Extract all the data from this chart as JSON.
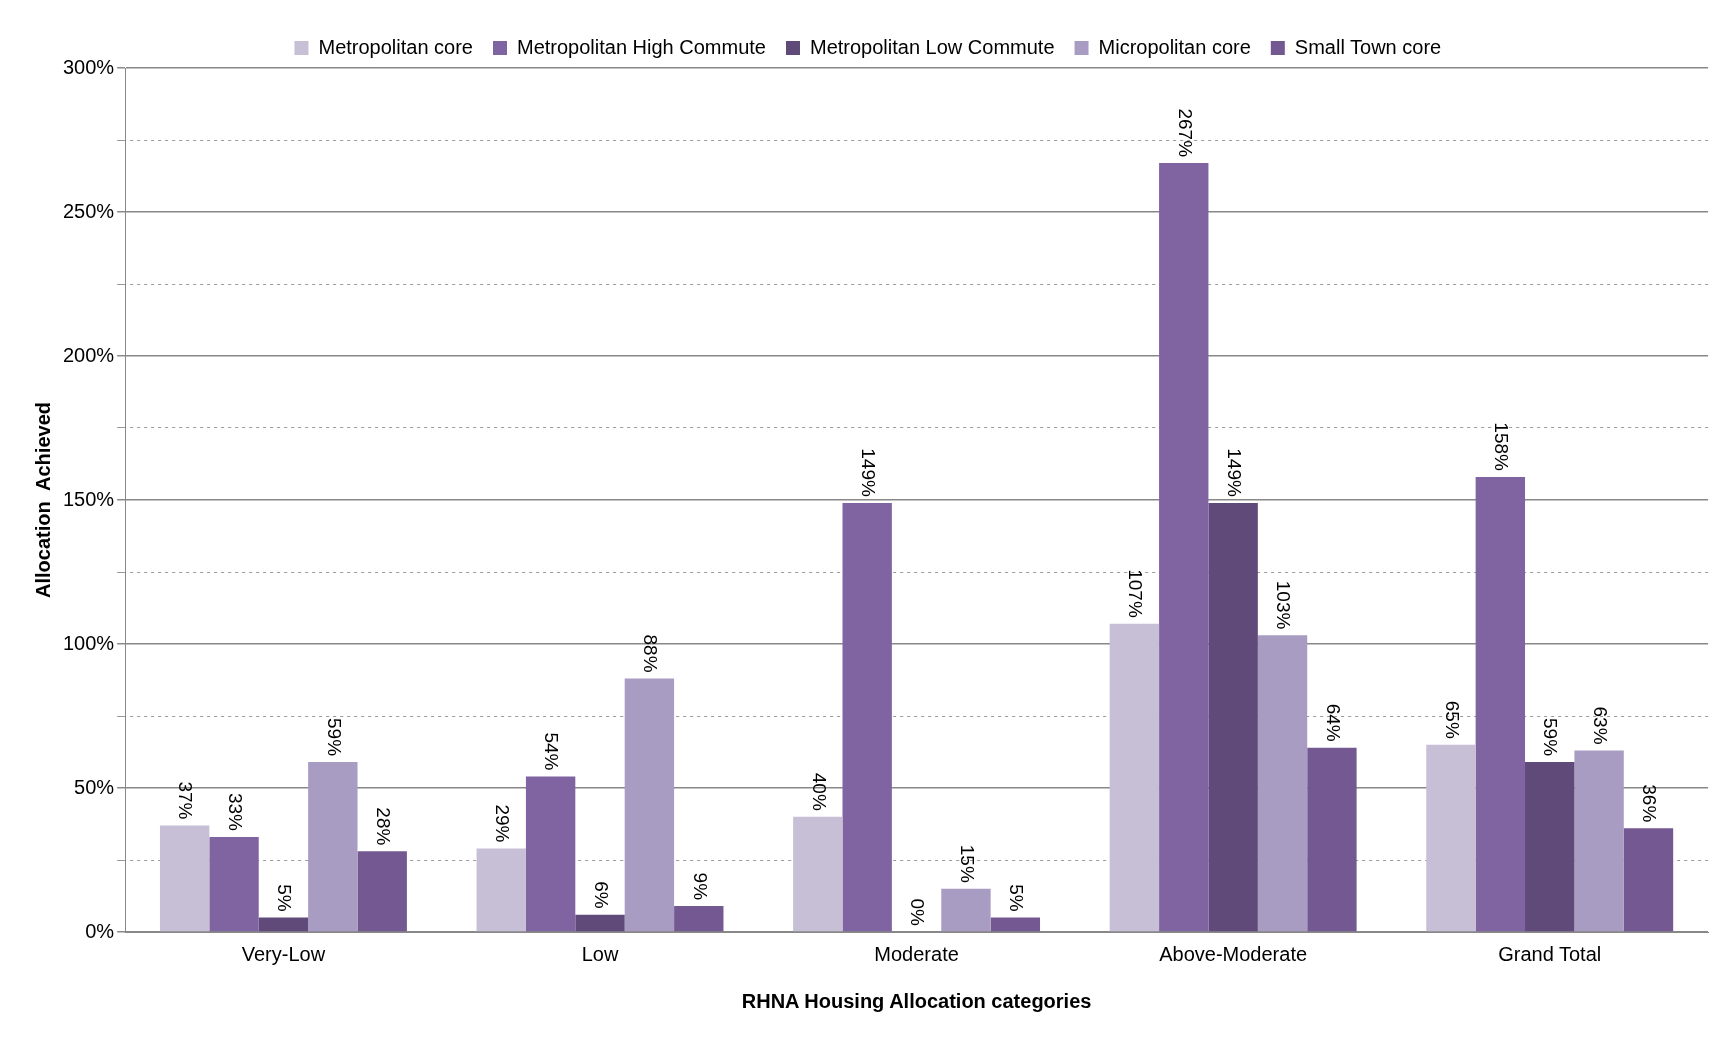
{
  "chart_data": {
    "type": "bar",
    "xlabel": "RHNA Housing Allocation categories",
    "ylabel": "Allocation  Achieved",
    "categories": [
      "Very-Low",
      "Low",
      "Moderate",
      "Above-Moderate",
      "Grand Total"
    ],
    "series": [
      {
        "name": "Metropolitan core",
        "color": "#c6bfd6",
        "values": [
          37,
          29,
          40,
          107,
          65
        ],
        "value_labels": [
          "37%",
          "29%",
          "40%",
          "107%",
          "65%"
        ]
      },
      {
        "name": "Metropolitan High Commute",
        "color": "#8064a2",
        "values": [
          33,
          54,
          149,
          267,
          158
        ],
        "value_labels": [
          "33%",
          "54%",
          "149%",
          "267%",
          "158%"
        ]
      },
      {
        "name": "Metropolitan Low Commute",
        "color": "#5f4a7a",
        "values": [
          5,
          6,
          0,
          149,
          59
        ],
        "value_labels": [
          "5%",
          "6%",
          "0%",
          "149%",
          "59%"
        ]
      },
      {
        "name": "Micropolitan core",
        "color": "#a99cc2",
        "values": [
          59,
          88,
          15,
          103,
          63
        ],
        "value_labels": [
          "59%",
          "88%",
          "15%",
          "103%",
          "63%"
        ]
      },
      {
        "name": "Small Town core",
        "color": "#735891",
        "values": [
          28,
          9,
          5,
          64,
          36
        ],
        "value_labels": [
          "28%",
          "9%",
          "5%",
          "64%",
          "36%"
        ]
      }
    ],
    "ylim": [
      0,
      300
    ],
    "yticks": [
      {
        "value": 0,
        "label": "0%"
      },
      {
        "value": 25,
        "label": null
      },
      {
        "value": 50,
        "label": "50%"
      },
      {
        "value": 75,
        "label": null
      },
      {
        "value": 100,
        "label": "100%"
      },
      {
        "value": 125,
        "label": null
      },
      {
        "value": 150,
        "label": "150%"
      },
      {
        "value": 175,
        "label": null
      },
      {
        "value": 200,
        "label": "200%"
      },
      {
        "value": 225,
        "label": null
      },
      {
        "value": 250,
        "label": "250%"
      },
      {
        "value": 275,
        "label": null
      },
      {
        "value": 300,
        "label": "300%"
      }
    ],
    "grid": "y",
    "legend": "top"
  }
}
